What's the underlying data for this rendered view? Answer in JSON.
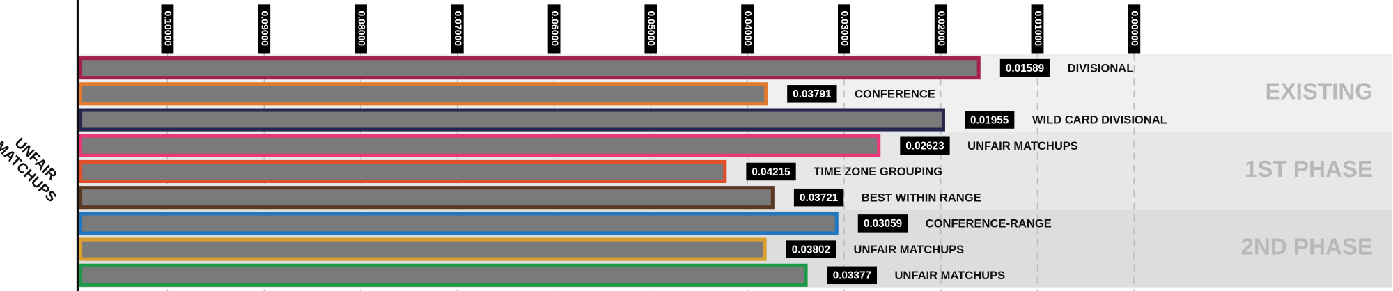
{
  "chart_data": {
    "type": "bar",
    "orientation": "horizontal",
    "y_label": [
      "UNFAIR",
      "MATCHUPS"
    ],
    "xlim": [
      0.10918,
      -0.02672
    ],
    "xticks": [
      {
        "value": 0.1,
        "label": "0.10000"
      },
      {
        "value": 0.09,
        "label": "0.09000"
      },
      {
        "value": 0.08,
        "label": "0.08000"
      },
      {
        "value": 0.07,
        "label": "0.07000"
      },
      {
        "value": 0.06,
        "label": "0.06000"
      },
      {
        "value": 0.05,
        "label": "0.05000"
      },
      {
        "value": 0.04,
        "label": "0.04000"
      },
      {
        "value": 0.03,
        "label": "0.03000"
      },
      {
        "value": 0.02,
        "label": "0.02000"
      },
      {
        "value": 0.01,
        "label": "0.01000"
      },
      {
        "value": 0,
        "label": "0.00000"
      }
    ],
    "grid": true,
    "bar_fill": "#7a7a7a",
    "groups": [
      {
        "name": "EXISTING",
        "background": "#f0f0f0",
        "categories": [
          "DIVISIONAL",
          "CONFERENCE",
          "WILD CARD DIVISIONAL"
        ],
        "values": [
          0.01589,
          0.03791,
          0.01955
        ],
        "colors": [
          "#a3204a",
          "#e07a2e",
          "#262650"
        ]
      },
      {
        "name": "1ST PHASE",
        "background": "#e7e7e7",
        "categories": [
          "UNFAIR MATCHUPS",
          "TIME ZONE GROUPING",
          "BEST WITHIN RANGE"
        ],
        "values": [
          0.02623,
          0.04215,
          0.03721
        ],
        "colors": [
          "#e8397a",
          "#e0502a",
          "#5b3a24"
        ]
      },
      {
        "name": "2ND PHASE",
        "background": "#dddddd",
        "categories": [
          "CONFERENCE-RANGE",
          "UNFAIR MATCHUPS",
          "UNFAIR MATCHUPS"
        ],
        "values": [
          0.03059,
          0.03802,
          0.03377
        ],
        "colors": [
          "#1f78c1",
          "#d9a030",
          "#1c9a4a"
        ]
      }
    ]
  }
}
